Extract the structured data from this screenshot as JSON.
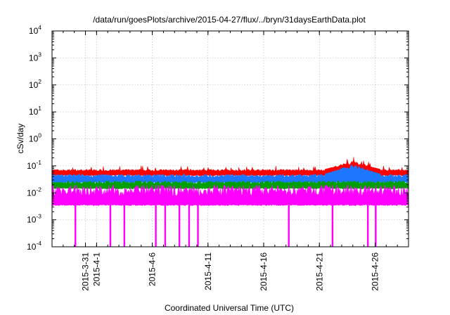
{
  "chart_data": {
    "type": "area",
    "title": "/data/run/goesPlots/archive/2015-04-27/flux/../bryn/31daysEarthData.plot",
    "xlabel": "Coordinated Universal Time (UTC)",
    "ylabel": "cSv/day",
    "y_scale": "log",
    "ylim": [
      0.0001,
      10000
    ],
    "y_ticks": [
      {
        "base": "10",
        "exp": "-4",
        "value": 0.0001
      },
      {
        "base": "10",
        "exp": "-3",
        "value": 0.001
      },
      {
        "base": "10",
        "exp": "-2",
        "value": 0.01
      },
      {
        "base": "10",
        "exp": "-1",
        "value": 0.1
      },
      {
        "base": "10",
        "exp": "0",
        "value": 1
      },
      {
        "base": "10",
        "exp": "1",
        "value": 10
      },
      {
        "base": "10",
        "exp": "2",
        "value": 100
      },
      {
        "base": "10",
        "exp": "3",
        "value": 1000
      },
      {
        "base": "10",
        "exp": "4",
        "value": 10000
      }
    ],
    "xlim": [
      "2015-03-28",
      "2015-04-29"
    ],
    "x_ticks": [
      "2015-3-31",
      "2015-4-1",
      "2015-4-6",
      "2015-4-11",
      "2015-4-16",
      "2015-4-21",
      "2015-4-26"
    ],
    "grid": true,
    "series": [
      {
        "color": "#ff0000",
        "approx_level": [
          0.055,
          0.075
        ],
        "peak": {
          "x": "2015-04-24",
          "y": 0.16
        }
      },
      {
        "color": "#1e78ff",
        "approx_level": [
          0.03,
          0.05
        ],
        "peak": {
          "x": "2015-04-24",
          "y": 0.12
        }
      },
      {
        "color": "#00a000",
        "approx_level": [
          0.018,
          0.028
        ]
      },
      {
        "color": "#ff00ff",
        "approx_level": [
          0.0035,
          0.02
        ],
        "dropouts_to": 0.0001,
        "dropout_dates": [
          "2015-03-30",
          "2015-04-02",
          "2015-04-03",
          "2015-04-06",
          "2015-04-07",
          "2015-04-08",
          "2015-04-09",
          "2015-04-10",
          "2015-04-18",
          "2015-04-22",
          "2015-04-25",
          "2015-04-26"
        ]
      }
    ]
  }
}
